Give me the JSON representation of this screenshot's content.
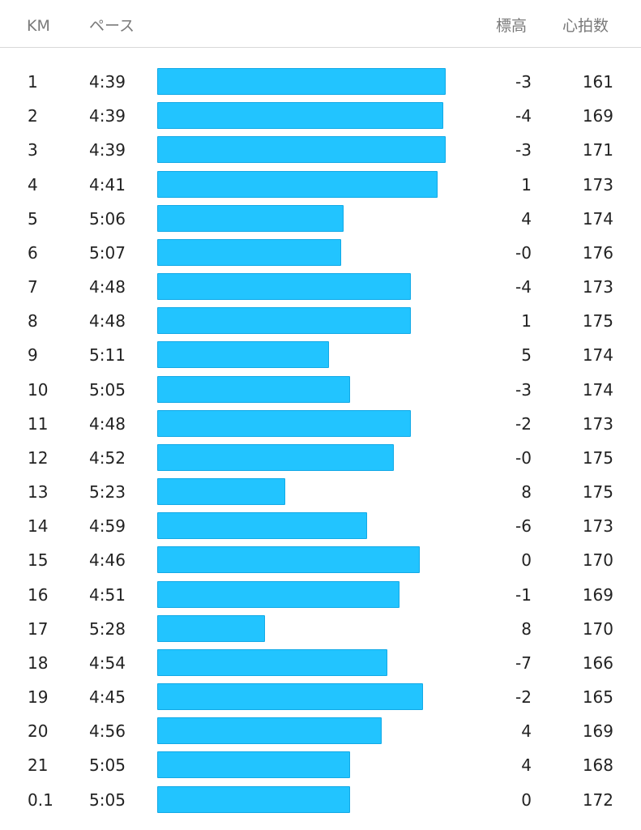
{
  "header": {
    "km": "KM",
    "pace": "ペース",
    "elevation": "標高",
    "heart_rate": "心拍数"
  },
  "bar_color": "#22c4ff",
  "splits": [
    {
      "km": "1",
      "pace": "4:39",
      "elev": "-3",
      "hr": "161",
      "pace_fill": 0.99
    },
    {
      "km": "2",
      "pace": "4:39",
      "elev": "-4",
      "hr": "169",
      "pace_fill": 0.98
    },
    {
      "km": "3",
      "pace": "4:39",
      "elev": "-3",
      "hr": "171",
      "pace_fill": 0.99
    },
    {
      "km": "4",
      "pace": "4:41",
      "elev": "1",
      "hr": "173",
      "pace_fill": 0.96
    },
    {
      "km": "5",
      "pace": "5:06",
      "elev": "4",
      "hr": "174",
      "pace_fill": 0.64
    },
    {
      "km": "6",
      "pace": "5:07",
      "elev": "-0",
      "hr": "176",
      "pace_fill": 0.63
    },
    {
      "km": "7",
      "pace": "4:48",
      "elev": "-4",
      "hr": "173",
      "pace_fill": 0.87
    },
    {
      "km": "8",
      "pace": "4:48",
      "elev": "1",
      "hr": "175",
      "pace_fill": 0.87
    },
    {
      "km": "9",
      "pace": "5:11",
      "elev": "5",
      "hr": "174",
      "pace_fill": 0.59
    },
    {
      "km": "10",
      "pace": "5:05",
      "elev": "-3",
      "hr": "174",
      "pace_fill": 0.66
    },
    {
      "km": "11",
      "pace": "4:48",
      "elev": "-2",
      "hr": "173",
      "pace_fill": 0.87
    },
    {
      "km": "12",
      "pace": "4:52",
      "elev": "-0",
      "hr": "175",
      "pace_fill": 0.81
    },
    {
      "km": "13",
      "pace": "5:23",
      "elev": "8",
      "hr": "175",
      "pace_fill": 0.44
    },
    {
      "km": "14",
      "pace": "4:59",
      "elev": "-6",
      "hr": "173",
      "pace_fill": 0.72
    },
    {
      "km": "15",
      "pace": "4:46",
      "elev": "0",
      "hr": "170",
      "pace_fill": 0.9
    },
    {
      "km": "16",
      "pace": "4:51",
      "elev": "-1",
      "hr": "169",
      "pace_fill": 0.83
    },
    {
      "km": "17",
      "pace": "5:28",
      "elev": "8",
      "hr": "170",
      "pace_fill": 0.37
    },
    {
      "km": "18",
      "pace": "4:54",
      "elev": "-7",
      "hr": "166",
      "pace_fill": 0.79
    },
    {
      "km": "19",
      "pace": "4:45",
      "elev": "-2",
      "hr": "165",
      "pace_fill": 0.91
    },
    {
      "km": "20",
      "pace": "4:56",
      "elev": "4",
      "hr": "169",
      "pace_fill": 0.77
    },
    {
      "km": "21",
      "pace": "5:05",
      "elev": "4",
      "hr": "168",
      "pace_fill": 0.66
    },
    {
      "km": "0.1",
      "pace": "5:05",
      "elev": "0",
      "hr": "172",
      "pace_fill": 0.66
    }
  ]
}
